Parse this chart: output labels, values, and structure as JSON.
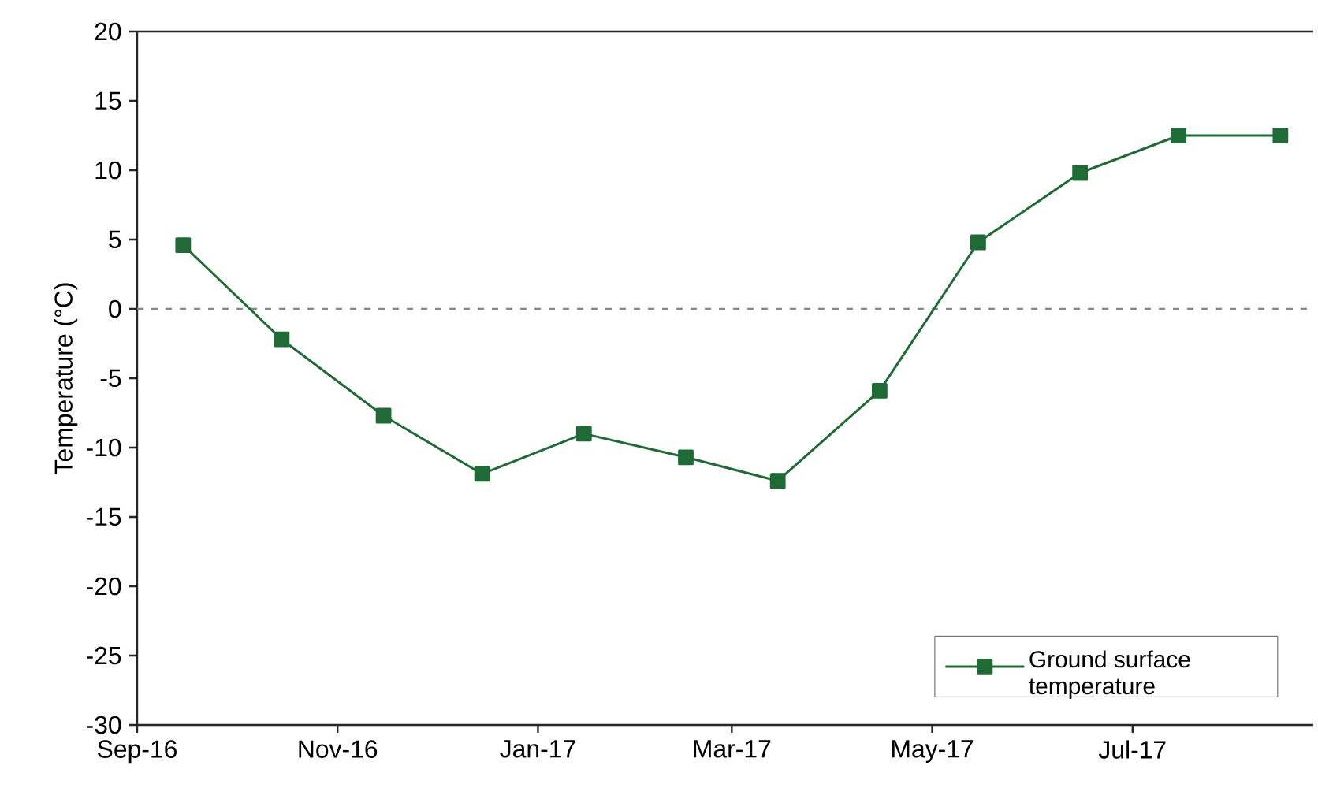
{
  "chart_data": {
    "type": "line",
    "ylabel": "Temperature (°C)",
    "x": [
      "2016-09-15",
      "2016-10-15",
      "2016-11-15",
      "2016-12-15",
      "2017-01-15",
      "2017-02-15",
      "2017-03-15",
      "2017-04-15",
      "2017-05-15",
      "2017-06-15",
      "2017-07-15",
      "2017-08-15"
    ],
    "series": [
      {
        "name": "Ground surface temperature",
        "color": "#1e6b35",
        "values": [
          4.6,
          -2.2,
          -7.7,
          -11.9,
          -9.0,
          -10.7,
          -12.4,
          -5.9,
          4.8,
          9.8,
          12.5,
          12.5
        ]
      }
    ],
    "xlim": [
      "2016-09-01",
      "2017-08-25"
    ],
    "xticks": [
      {
        "value": "2016-09-01",
        "label": "Sep-16"
      },
      {
        "value": "2016-11-01",
        "label": "Nov-16"
      },
      {
        "value": "2017-01-01",
        "label": "Jan-17"
      },
      {
        "value": "2017-03-01",
        "label": "Mar-17"
      },
      {
        "value": "2017-05-01",
        "label": "May-17"
      },
      {
        "value": "2017-07-01",
        "label": "Jul-17"
      }
    ],
    "ylim": [
      -30,
      20
    ],
    "yticks": [
      -30,
      -25,
      -20,
      -15,
      -10,
      -5,
      0,
      5,
      10,
      15,
      20
    ],
    "ref_lines": [
      {
        "axis": "y",
        "value": 0,
        "color": "#888888",
        "line_style": "dashed"
      }
    ],
    "legend": "bottom right",
    "marker": "square",
    "line_style": "solid"
  }
}
